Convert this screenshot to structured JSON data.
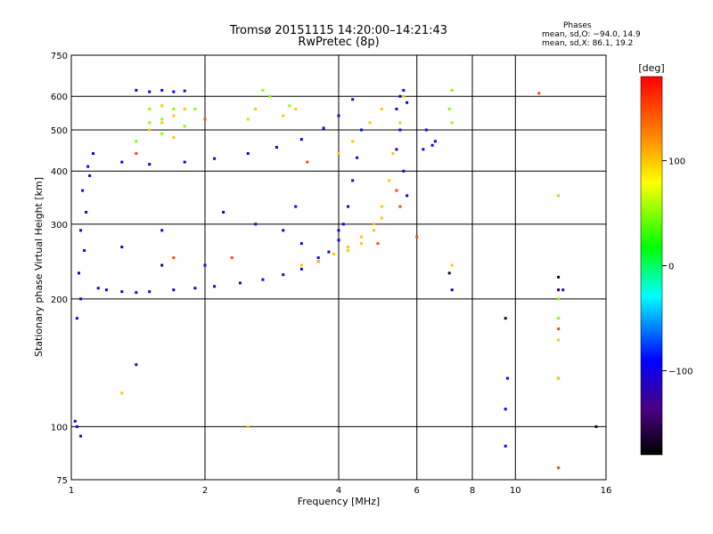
{
  "header": {
    "title_line1": "Tromsø 20151115 14:20:00–14:21:43",
    "title_line2": "RwPretec (8p)"
  },
  "phase_info": {
    "heading": "Phases",
    "o_mode": "mean, sd,O: −94.0, 14.9",
    "x_mode": "mean, sd,X:  86.1, 19.2"
  },
  "chart_data": {
    "type": "scatter",
    "title": "Tromsø 20151115 14:20:00–14:21:43",
    "subtitle": "RwPretec (8p)",
    "xlabel": "Frequency [MHz]",
    "ylabel": "Stationary phase Virtual Height [km]",
    "x_scale": "log",
    "y_scale": "log",
    "xlim": [
      1,
      16
    ],
    "ylim": [
      75,
      750
    ],
    "x_ticks": [
      1,
      2,
      4,
      6,
      8,
      10,
      16
    ],
    "x_tick_labels": [
      "1",
      "2",
      "4",
      "6",
      "8",
      "10",
      "16"
    ],
    "x_grid": [
      1,
      2,
      4,
      6,
      8,
      10
    ],
    "y_ticks": [
      75,
      100,
      200,
      300,
      400,
      500,
      600,
      750
    ],
    "y_tick_labels": [
      "75",
      "100",
      "200",
      "300",
      "400",
      "500",
      "600",
      "750"
    ],
    "y_grid": [
      100,
      200,
      300,
      400,
      500,
      600
    ],
    "grid": true,
    "colorbar": {
      "label": "[deg]",
      "range": [
        -180,
        180
      ],
      "ticks": [
        100,
        0,
        -100
      ],
      "tick_labels": [
        "100",
        "0",
        "−100"
      ]
    },
    "series": [
      {
        "color_phase_deg": -100,
        "points": [
          [
            1.03,
            180
          ],
          [
            1.05,
            200
          ],
          [
            1.04,
            230
          ],
          [
            1.07,
            260
          ],
          [
            1.05,
            290
          ],
          [
            1.08,
            320
          ],
          [
            1.06,
            360
          ],
          [
            1.1,
            390
          ],
          [
            1.09,
            410
          ],
          [
            1.12,
            440
          ],
          [
            1.15,
            212
          ],
          [
            1.2,
            210
          ],
          [
            1.3,
            208
          ],
          [
            1.4,
            207
          ],
          [
            1.5,
            208
          ],
          [
            1.7,
            210
          ],
          [
            1.9,
            212
          ],
          [
            2.1,
            214
          ],
          [
            2.4,
            218
          ],
          [
            2.7,
            222
          ],
          [
            3.0,
            228
          ],
          [
            3.3,
            235
          ],
          [
            3.6,
            245
          ],
          [
            3.8,
            258
          ],
          [
            4.0,
            275
          ],
          [
            4.1,
            300
          ],
          [
            4.2,
            330
          ],
          [
            4.3,
            380
          ],
          [
            4.4,
            430
          ],
          [
            4.5,
            500
          ],
          [
            1.3,
            420
          ],
          [
            1.5,
            415
          ],
          [
            1.8,
            420
          ],
          [
            2.1,
            428
          ],
          [
            2.5,
            440
          ],
          [
            2.9,
            455
          ],
          [
            3.3,
            475
          ],
          [
            3.7,
            505
          ],
          [
            4.0,
            540
          ],
          [
            4.3,
            590
          ],
          [
            1.4,
            620
          ],
          [
            1.5,
            615
          ],
          [
            1.6,
            620
          ],
          [
            1.7,
            615
          ],
          [
            1.8,
            618
          ],
          [
            5.4,
            560
          ],
          [
            5.5,
            600
          ],
          [
            5.6,
            620
          ],
          [
            5.7,
            580
          ],
          [
            5.5,
            500
          ],
          [
            5.4,
            450
          ],
          [
            5.6,
            400
          ],
          [
            5.7,
            350
          ],
          [
            3.0,
            290
          ],
          [
            3.3,
            270
          ],
          [
            3.6,
            250
          ],
          [
            4.0,
            290
          ],
          [
            3.2,
            330
          ],
          [
            2.6,
            300
          ],
          [
            2.2,
            320
          ],
          [
            2.0,
            240
          ],
          [
            1.6,
            290
          ],
          [
            1.3,
            265
          ],
          [
            1.03,
            100
          ],
          [
            1.05,
            95
          ],
          [
            1.02,
            103
          ],
          [
            6.3,
            500
          ],
          [
            6.5,
            460
          ],
          [
            6.2,
            450
          ],
          [
            6.6,
            470
          ],
          [
            9.5,
            110
          ],
          [
            9.6,
            130
          ],
          [
            12.5,
            130
          ],
          [
            12.8,
            210
          ],
          [
            1.4,
            140
          ],
          [
            9.5,
            90
          ],
          [
            7.2,
            210
          ]
        ]
      },
      {
        "color_phase_deg": 100,
        "points": [
          [
            3.3,
            240
          ],
          [
            3.6,
            245
          ],
          [
            3.9,
            255
          ],
          [
            4.2,
            265
          ],
          [
            4.5,
            280
          ],
          [
            4.8,
            300
          ],
          [
            5.0,
            330
          ],
          [
            5.2,
            380
          ],
          [
            5.3,
            440
          ],
          [
            5.5,
            520
          ],
          [
            5.6,
            600
          ],
          [
            4.0,
            440
          ],
          [
            4.3,
            470
          ],
          [
            4.7,
            520
          ],
          [
            5.0,
            560
          ],
          [
            4.2,
            260
          ],
          [
            4.5,
            270
          ],
          [
            4.8,
            290
          ],
          [
            5.0,
            310
          ],
          [
            1.6,
            520
          ],
          [
            1.7,
            540
          ],
          [
            1.6,
            570
          ],
          [
            1.8,
            560
          ],
          [
            1.5,
            500
          ],
          [
            1.7,
            480
          ],
          [
            2.5,
            530
          ],
          [
            2.6,
            560
          ],
          [
            2.8,
            600
          ],
          [
            3.2,
            560
          ],
          [
            3.0,
            540
          ],
          [
            12.5,
            130
          ],
          [
            12.5,
            160
          ],
          [
            7.2,
            240
          ],
          [
            1.3,
            120
          ],
          [
            2.5,
            100
          ]
        ]
      },
      {
        "color_phase_deg": 50,
        "points": [
          [
            1.5,
            560
          ],
          [
            1.6,
            530
          ],
          [
            1.7,
            560
          ],
          [
            1.8,
            510
          ],
          [
            1.6,
            490
          ],
          [
            1.4,
            470
          ],
          [
            2.7,
            620
          ],
          [
            2.8,
            600
          ],
          [
            3.1,
            570
          ],
          [
            7.2,
            620
          ],
          [
            7.2,
            520
          ],
          [
            12.5,
            180
          ],
          [
            12.5,
            350
          ],
          [
            1.5,
            520
          ],
          [
            1.9,
            560
          ],
          [
            7.1,
            560
          ],
          [
            12.5,
            200
          ]
        ]
      },
      {
        "color_phase_deg": 150,
        "points": [
          [
            5.4,
            360
          ],
          [
            5.5,
            330
          ],
          [
            4.9,
            270
          ],
          [
            1.4,
            440
          ],
          [
            2.3,
            250
          ],
          [
            1.7,
            250
          ],
          [
            11.3,
            610
          ],
          [
            12.5,
            170
          ],
          [
            12.5,
            80
          ],
          [
            2.0,
            530
          ],
          [
            3.4,
            420
          ],
          [
            6.0,
            280
          ]
        ]
      },
      {
        "color_phase_deg": -160,
        "points": [
          [
            7.1,
            230
          ],
          [
            12.5,
            210
          ],
          [
            12.5,
            225
          ],
          [
            9.5,
            180
          ],
          [
            15.2,
            100
          ],
          [
            1.6,
            240
          ]
        ]
      }
    ]
  }
}
